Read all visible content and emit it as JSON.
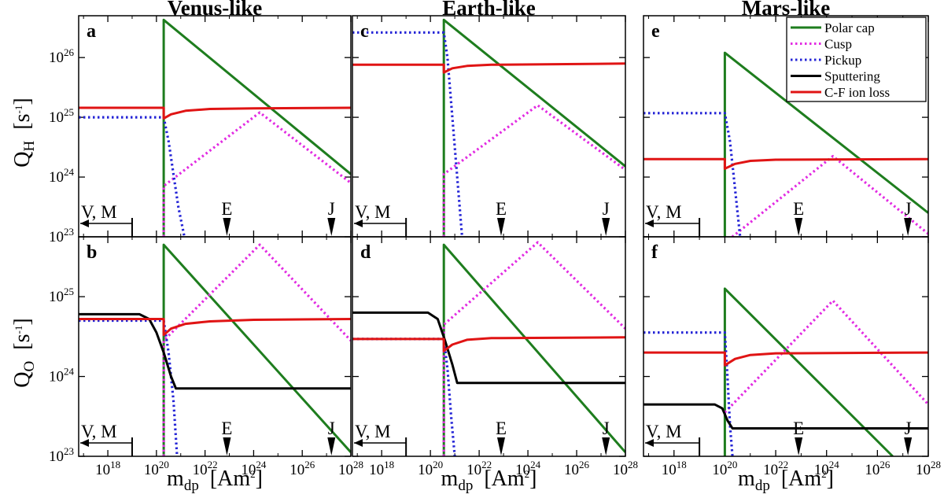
{
  "chart_data": {
    "type": "line",
    "x_scale": "log",
    "x_exponent_range": [
      16.8,
      28
    ],
    "xlabel": "m",
    "xlabel_sub": "dp",
    "xlabel_unit": "[Am",
    "xlabel_unit_sup": "2",
    "xlabel_unit_close": "]",
    "xticks": [
      {
        "exp": 18,
        "base": "10",
        "sup": "18"
      },
      {
        "exp": 20,
        "base": "10",
        "sup": "20"
      },
      {
        "exp": 22,
        "base": "10",
        "sup": "22"
      },
      {
        "exp": 24,
        "base": "10",
        "sup": "24"
      },
      {
        "exp": 26,
        "base": "10",
        "sup": "26"
      },
      {
        "exp": 28,
        "base": "10",
        "sup": "28"
      }
    ],
    "rows": [
      {
        "ylabel": "Q",
        "ylabel_sub": "H",
        "yunit": "[s",
        "yunit_sup": "-1",
        "yunit_close": "]",
        "y_exponent_range": [
          23,
          26.7
        ],
        "yticks": [
          {
            "exp": 23,
            "base": "10",
            "sup": "23"
          },
          {
            "exp": 24,
            "base": "10",
            "sup": "24"
          },
          {
            "exp": 25,
            "base": "10",
            "sup": "25"
          },
          {
            "exp": 26,
            "base": "10",
            "sup": "26"
          }
        ]
      },
      {
        "ylabel": "Q",
        "ylabel_sub": "O",
        "yunit": "[s",
        "yunit_sup": "-1",
        "yunit_close": "]",
        "y_exponent_range": [
          23,
          25.75
        ],
        "yticks": [
          {
            "exp": 23,
            "base": "10",
            "sup": "23"
          },
          {
            "exp": 24,
            "base": "10",
            "sup": "24"
          },
          {
            "exp": 25,
            "base": "10",
            "sup": "25"
          }
        ]
      }
    ],
    "columns": [
      {
        "title": "Venus-like"
      },
      {
        "title": "Earth-like"
      },
      {
        "title": "Mars-like"
      }
    ],
    "legend": {
      "position": "top-right",
      "entries": [
        {
          "label": "Polar cap",
          "color": "#1e7d1e",
          "style": "solid"
        },
        {
          "label": "Cusp",
          "color": "#e22be2",
          "style": "dotted"
        },
        {
          "label": "Pickup",
          "color": "#2424d6",
          "style": "dotted"
        },
        {
          "label": "Sputtering",
          "color": "#000000",
          "style": "solid"
        },
        {
          "label": "C-F ion loss",
          "color": "#e01414",
          "style": "solid"
        }
      ]
    },
    "markers": [
      {
        "label": "V, M",
        "exp": 19.0,
        "kind": "arrow-left"
      },
      {
        "label": "E",
        "exp": 22.9,
        "kind": "triangle"
      },
      {
        "label": "J",
        "exp": 27.2,
        "kind": "triangle"
      }
    ],
    "panels": [
      {
        "letter": "a",
        "row": 0,
        "col": 0,
        "series": [
          {
            "name": "Polar cap",
            "points": [
              [
                20.3,
                23
              ],
              [
                20.3,
                26.63
              ],
              [
                28,
                24.05
              ]
            ]
          },
          {
            "name": "Cusp",
            "points": [
              [
                20.3,
                23
              ],
              [
                20.3,
                23.85
              ],
              [
                24.25,
                25.08
              ],
              [
                28,
                23.9
              ]
            ]
          },
          {
            "name": "Pickup",
            "points": [
              [
                16.8,
                25
              ],
              [
                20.3,
                25
              ],
              [
                20.5,
                24.6
              ],
              [
                20.7,
                24.05
              ],
              [
                20.9,
                23.5
              ],
              [
                21.15,
                23
              ]
            ]
          },
          {
            "name": "C-F ion loss",
            "points": [
              [
                16.8,
                25.16
              ],
              [
                20.3,
                25.16
              ],
              [
                20.3,
                24.98
              ],
              [
                20.6,
                25.05
              ],
              [
                21.2,
                25.11
              ],
              [
                22.2,
                25.14
              ],
              [
                24,
                25.15
              ],
              [
                28,
                25.16
              ]
            ]
          }
        ]
      },
      {
        "letter": "b",
        "row": 1,
        "col": 0,
        "series": [
          {
            "name": "Polar cap",
            "points": [
              [
                20.3,
                23
              ],
              [
                20.3,
                25.65
              ],
              [
                28,
                23.05
              ]
            ]
          },
          {
            "name": "Cusp",
            "points": [
              [
                20.3,
                23
              ],
              [
                20.3,
                24.45
              ],
              [
                24.25,
                25.65
              ],
              [
                28,
                24.45
              ]
            ]
          },
          {
            "name": "Pickup",
            "points": [
              [
                16.8,
                24.7
              ],
              [
                20.3,
                24.7
              ],
              [
                20.5,
                24.3
              ],
              [
                20.7,
                23.7
              ],
              [
                20.85,
                23
              ]
            ]
          },
          {
            "name": "Sputtering",
            "points": [
              [
                16.8,
                24.78
              ],
              [
                19.3,
                24.78
              ],
              [
                19.7,
                24.72
              ],
              [
                20.0,
                24.55
              ],
              [
                20.3,
                24.3
              ],
              [
                20.6,
                24.0
              ],
              [
                20.8,
                23.85
              ],
              [
                28,
                23.85
              ]
            ]
          },
          {
            "name": "C-F ion loss",
            "points": [
              [
                16.8,
                24.72
              ],
              [
                20.3,
                24.72
              ],
              [
                20.3,
                24.52
              ],
              [
                20.6,
                24.6
              ],
              [
                21.2,
                24.66
              ],
              [
                22.2,
                24.69
              ],
              [
                24,
                24.71
              ],
              [
                28,
                24.72
              ]
            ]
          }
        ]
      },
      {
        "letter": "c",
        "row": 0,
        "col": 1,
        "series": [
          {
            "name": "Polar cap",
            "points": [
              [
                20.55,
                23
              ],
              [
                20.55,
                26.63
              ],
              [
                28,
                24.18
              ]
            ]
          },
          {
            "name": "Cusp",
            "points": [
              [
                20.55,
                23
              ],
              [
                20.55,
                24.05
              ],
              [
                24.4,
                25.2
              ],
              [
                28,
                24.12
              ]
            ]
          },
          {
            "name": "Pickup",
            "points": [
              [
                16.8,
                26.42
              ],
              [
                20.55,
                26.42
              ],
              [
                20.7,
                26.0
              ],
              [
                20.9,
                25.0
              ],
              [
                21.1,
                24.0
              ],
              [
                21.3,
                23
              ]
            ]
          },
          {
            "name": "C-F ion loss",
            "points": [
              [
                16.8,
                25.88
              ],
              [
                20.55,
                25.88
              ],
              [
                20.55,
                25.75
              ],
              [
                20.9,
                25.82
              ],
              [
                21.5,
                25.86
              ],
              [
                22.5,
                25.88
              ],
              [
                28,
                25.9
              ]
            ]
          }
        ]
      },
      {
        "letter": "d",
        "row": 1,
        "col": 1,
        "series": [
          {
            "name": "Polar cap",
            "points": [
              [
                20.55,
                23
              ],
              [
                20.55,
                25.65
              ],
              [
                28,
                23.05
              ]
            ]
          },
          {
            "name": "Cusp",
            "points": [
              [
                20.55,
                23
              ],
              [
                20.55,
                24.65
              ],
              [
                24.4,
                25.68
              ],
              [
                28,
                24.6
              ]
            ]
          },
          {
            "name": "Pickup",
            "points": [
              [
                16.8,
                24.47
              ],
              [
                20.55,
                24.47
              ],
              [
                20.7,
                24.1
              ],
              [
                20.85,
                23.5
              ],
              [
                21.0,
                23
              ]
            ]
          },
          {
            "name": "Sputtering",
            "points": [
              [
                16.8,
                24.8
              ],
              [
                19.9,
                24.8
              ],
              [
                20.3,
                24.72
              ],
              [
                20.6,
                24.45
              ],
              [
                20.9,
                24.15
              ],
              [
                21.1,
                23.92
              ],
              [
                28,
                23.92
              ]
            ]
          },
          {
            "name": "C-F ion loss",
            "points": [
              [
                16.8,
                24.47
              ],
              [
                20.55,
                24.47
              ],
              [
                20.55,
                24.32
              ],
              [
                20.9,
                24.4
              ],
              [
                21.5,
                24.46
              ],
              [
                22.5,
                24.48
              ],
              [
                28,
                24.49
              ]
            ]
          }
        ]
      },
      {
        "letter": "e",
        "row": 0,
        "col": 2,
        "series": [
          {
            "name": "Polar cap",
            "points": [
              [
                20.0,
                23
              ],
              [
                20.0,
                26.08
              ],
              [
                28,
                23.4
              ]
            ]
          },
          {
            "name": "Cusp",
            "points": [
              [
                20.0,
                22.9
              ],
              [
                24.25,
                24.35
              ],
              [
                28,
                23.05
              ]
            ]
          },
          {
            "name": "Pickup",
            "points": [
              [
                16.8,
                25.07
              ],
              [
                20.0,
                25.07
              ],
              [
                20.2,
                24.6
              ],
              [
                20.4,
                23.8
              ],
              [
                20.6,
                23
              ]
            ]
          },
          {
            "name": "C-F ion loss",
            "points": [
              [
                16.8,
                24.3
              ],
              [
                20.0,
                24.3
              ],
              [
                20.0,
                24.14
              ],
              [
                20.4,
                24.22
              ],
              [
                21.0,
                24.27
              ],
              [
                22.0,
                24.29
              ],
              [
                28,
                24.3
              ]
            ]
          }
        ]
      },
      {
        "letter": "f",
        "row": 1,
        "col": 2,
        "series": [
          {
            "name": "Polar cap",
            "points": [
              [
                20.0,
                23
              ],
              [
                20.0,
                25.1
              ],
              [
                26.6,
                23
              ]
            ]
          },
          {
            "name": "Cusp",
            "points": [
              [
                20.0,
                23.55
              ],
              [
                24.25,
                24.95
              ],
              [
                28,
                23.65
              ]
            ]
          },
          {
            "name": "Pickup",
            "points": [
              [
                16.8,
                24.55
              ],
              [
                20.0,
                24.55
              ],
              [
                20.1,
                24.0
              ],
              [
                20.2,
                23.4
              ],
              [
                20.3,
                23
              ]
            ]
          },
          {
            "name": "Sputtering",
            "points": [
              [
                16.8,
                23.65
              ],
              [
                19.6,
                23.65
              ],
              [
                19.9,
                23.6
              ],
              [
                20.1,
                23.45
              ],
              [
                20.3,
                23.35
              ],
              [
                28,
                23.35
              ]
            ]
          },
          {
            "name": "C-F ion loss",
            "points": [
              [
                16.8,
                24.3
              ],
              [
                20.0,
                24.3
              ],
              [
                20.0,
                24.14
              ],
              [
                20.4,
                24.22
              ],
              [
                21.0,
                24.27
              ],
              [
                22.0,
                24.29
              ],
              [
                28,
                24.3
              ]
            ]
          }
        ]
      }
    ]
  }
}
